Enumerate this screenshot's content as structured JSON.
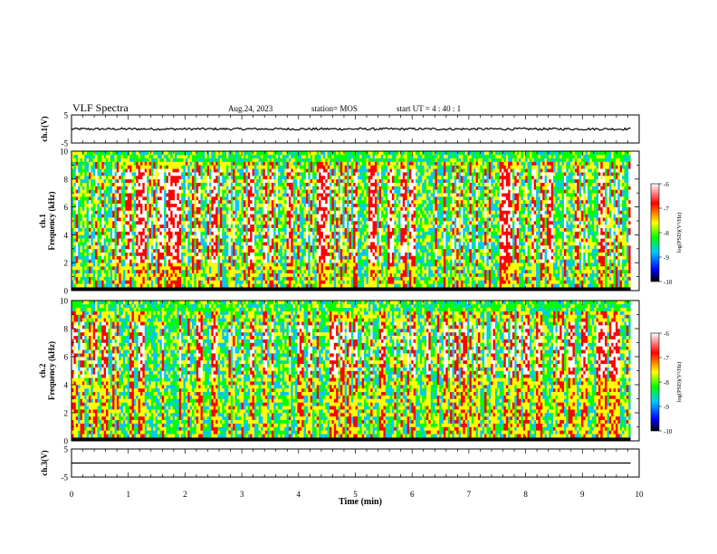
{
  "header": {
    "title": "VLF Spectra",
    "date": "Aug.24, 2023",
    "station": "station= MOS",
    "start": "start  UT =   4 : 40 : 1"
  },
  "chart_data": [
    {
      "type": "line",
      "name": "ch1-waveform",
      "ylabel": "ch.1(V)",
      "ylim": [
        -5,
        5
      ],
      "y_ticks": [
        "5",
        "-5"
      ],
      "xlim": [
        0,
        10
      ],
      "baseline": 0,
      "noise_amplitude": 0.4
    },
    {
      "type": "heatmap",
      "name": "ch1-spectrogram",
      "ylabel": "ch.1\nFrequency (kHz)",
      "ylim": [
        0,
        10
      ],
      "y_ticks": [
        "0",
        "2",
        "4",
        "6",
        "8",
        "10"
      ],
      "xlim": [
        0,
        9.85
      ],
      "colorbar": {
        "label": "log(PSD)(V²/Hz)",
        "range": [
          -10,
          -6
        ],
        "ticks": [
          "-6",
          "-7",
          "-8",
          "-9",
          "-10"
        ]
      }
    },
    {
      "type": "heatmap",
      "name": "ch2-spectrogram",
      "ylabel": "ch.2\nFrequency (kHz)",
      "ylim": [
        0,
        10
      ],
      "y_ticks": [
        "0",
        "2",
        "4",
        "6",
        "8",
        "10"
      ],
      "xlim": [
        0,
        9.85
      ],
      "colorbar": {
        "label": "log(PSD)(V²/Hz)",
        "range": [
          -10,
          -6
        ],
        "ticks": [
          "-6",
          "-7",
          "-8",
          "-9",
          "-10"
        ]
      }
    },
    {
      "type": "line",
      "name": "ch3-waveform",
      "ylabel": "ch.3(V)",
      "ylim": [
        -5,
        5
      ],
      "y_ticks": [
        "5",
        "-5"
      ],
      "xlim": [
        0,
        10
      ],
      "baseline": 0,
      "noise_amplitude": 0
    }
  ],
  "xaxis": {
    "label": "Time  (min)",
    "ticks": [
      "0",
      "1",
      "2",
      "3",
      "4",
      "5",
      "6",
      "7",
      "8",
      "9",
      "10"
    ]
  },
  "colors": {
    "colormap": [
      "#000000",
      "#0000ff",
      "#00c8ff",
      "#00ff00",
      "#ffff00",
      "#ff0000",
      "#ffffff"
    ]
  }
}
